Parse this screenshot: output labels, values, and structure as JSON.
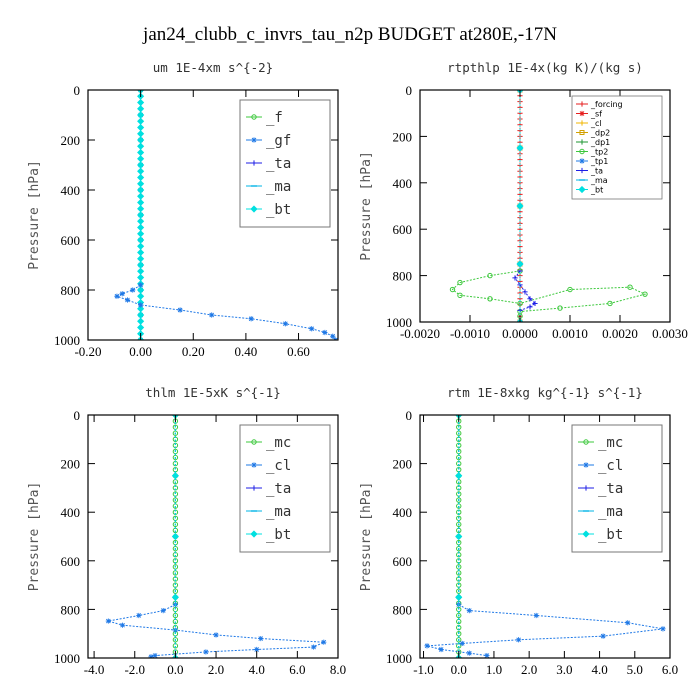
{
  "figure_title": "jan24_clubb_c_invrs_tau_n2p  BUDGET at280E,-17N",
  "chart_data": [
    {
      "type": "line",
      "title": "um   1E-4xm s^{-2}",
      "ylabel": "Pressure [hPa]",
      "ylim": [
        1000,
        0
      ],
      "xlim": [
        -0.2,
        0.75
      ],
      "xticks": [
        "-0.20",
        "0.00",
        "0.20",
        "0.40",
        "0.60"
      ],
      "xtick_values": [
        -0.2,
        0.0,
        0.2,
        0.4,
        0.6
      ],
      "yticks": [
        "0",
        "200",
        "400",
        "600",
        "800",
        "1000"
      ],
      "ytick_values": [
        0,
        200,
        400,
        600,
        800,
        1000
      ],
      "legend_style": "big",
      "legend_position": "top-right",
      "series": [
        {
          "name": "_f",
          "color": "#3cc83c",
          "marker": "circle",
          "x": [
            0,
            0,
            0,
            0,
            0,
            0,
            0,
            0,
            0,
            0,
            0
          ],
          "y": [
            0,
            100,
            200,
            300,
            400,
            500,
            600,
            700,
            800,
            900,
            1000
          ]
        },
        {
          "name": "_gf",
          "color": "#1e78e6",
          "marker": "star",
          "x": [
            0,
            0,
            0,
            0,
            0,
            0,
            0,
            0,
            0,
            0,
            0
          ],
          "y": [
            0,
            100,
            200,
            300,
            400,
            500,
            600,
            700,
            800,
            900,
            1000
          ]
        },
        {
          "name": "_ta",
          "color": "#1e1ee6",
          "marker": "plus",
          "x": [
            0,
            0,
            0,
            0,
            0,
            0,
            0,
            0,
            0,
            0,
            0
          ],
          "y": [
            0,
            100,
            200,
            300,
            400,
            500,
            600,
            700,
            800,
            900,
            1000
          ]
        },
        {
          "name": "_ma",
          "color": "#00b4e6",
          "marker": "dash",
          "x": [
            0,
            0,
            0,
            0,
            0,
            0,
            0,
            0,
            0,
            0,
            0
          ],
          "y": [
            0,
            100,
            200,
            300,
            400,
            500,
            600,
            700,
            800,
            900,
            1000
          ]
        },
        {
          "name": "_bt",
          "color": "#00e0e0",
          "marker": "diamond",
          "x": [
            0,
            0,
            0,
            0,
            0,
            0,
            0,
            0,
            0,
            0,
            0,
            0,
            0,
            0,
            0,
            0,
            0,
            0,
            0,
            0,
            0,
            0,
            0,
            0,
            0,
            0,
            0,
            0,
            0,
            0,
            0,
            0,
            0,
            0,
            0,
            0,
            0,
            0,
            0,
            0,
            0
          ],
          "y": [
            0,
            25,
            50,
            75,
            100,
            125,
            150,
            175,
            200,
            225,
            250,
            275,
            300,
            325,
            350,
            375,
            400,
            425,
            450,
            475,
            500,
            525,
            550,
            575,
            600,
            625,
            650,
            675,
            700,
            725,
            750,
            775,
            800,
            825,
            850,
            875,
            900,
            925,
            950,
            975,
            1000
          ]
        },
        {
          "name": "",
          "color": "#1e78e6",
          "marker": "star",
          "x": [
            0.0,
            -0.03,
            -0.07,
            -0.09,
            -0.05,
            0.0,
            0.15,
            0.27,
            0.42,
            0.55,
            0.65,
            0.7,
            0.73,
            0.74
          ],
          "y": [
            780,
            800,
            815,
            825,
            840,
            860,
            880,
            900,
            915,
            935,
            955,
            970,
            985,
            1000
          ]
        }
      ]
    },
    {
      "type": "line",
      "title": "rtpthlp   1E-4x(kg K)/(kg s)",
      "ylabel": "Pressure [hPa]",
      "ylim": [
        1000,
        0
      ],
      "xlim": [
        -0.002,
        0.003
      ],
      "xticks": [
        "-0.0020",
        "-0.0010",
        "0.0000",
        "0.0010",
        "0.0020",
        "0.0030"
      ],
      "xtick_values": [
        -0.002,
        -0.001,
        0.0,
        0.001,
        0.002,
        0.003
      ],
      "yticks": [
        "0",
        "200",
        "400",
        "600",
        "800",
        "1000"
      ],
      "ytick_values": [
        0,
        200,
        400,
        600,
        800,
        1000
      ],
      "legend_style": "small",
      "legend_position": "top-right",
      "series": [
        {
          "name": "_forcing",
          "color": "#e61e1e",
          "marker": "plus",
          "x": [
            0,
            0,
            0,
            0,
            0,
            0,
            0,
            0,
            0,
            0,
            0,
            0,
            0,
            0,
            0,
            0,
            0,
            0,
            0,
            0,
            0,
            0,
            0,
            0,
            0,
            0,
            0,
            0,
            0,
            0,
            0,
            0,
            0,
            0,
            0,
            0,
            0,
            0,
            0,
            0,
            0
          ],
          "y": [
            0,
            25,
            50,
            75,
            100,
            125,
            150,
            175,
            200,
            225,
            250,
            275,
            300,
            325,
            350,
            375,
            400,
            425,
            450,
            475,
            500,
            525,
            550,
            575,
            600,
            625,
            650,
            675,
            700,
            725,
            750,
            775,
            800,
            825,
            850,
            875,
            900,
            925,
            950,
            975,
            1000
          ]
        },
        {
          "name": "_sf",
          "color": "#e61e1e",
          "marker": "star",
          "x": [
            0,
            0,
            0,
            0,
            0
          ],
          "y": [
            0,
            250,
            500,
            750,
            1000
          ]
        },
        {
          "name": "_cl",
          "color": "#f0b400",
          "marker": "plus",
          "x": [
            0,
            0,
            0,
            0,
            0
          ],
          "y": [
            0,
            250,
            500,
            750,
            1000
          ]
        },
        {
          "name": "_dp2",
          "color": "#d2a000",
          "marker": "square",
          "x": [
            0,
            0,
            0,
            0,
            0
          ],
          "y": [
            0,
            250,
            500,
            750,
            1000
          ]
        },
        {
          "name": "_dp1",
          "color": "#1e9632",
          "marker": "plus",
          "x": [
            0,
            0,
            0,
            0,
            0
          ],
          "y": [
            0,
            250,
            500,
            750,
            1000
          ]
        },
        {
          "name": "_tp2",
          "color": "#3cc83c",
          "marker": "circle",
          "x": [
            0.0,
            -0.0006,
            -0.0012,
            -0.00135,
            -0.0012,
            -0.0006,
            0.0,
            0.001,
            0.0022,
            0.0025,
            0.0018,
            0.0008,
            0.0,
            0.0
          ],
          "y": [
            780,
            800,
            830,
            860,
            885,
            900,
            920,
            860,
            850,
            880,
            920,
            940,
            955,
            975
          ]
        },
        {
          "name": "_tp1",
          "color": "#1e78e6",
          "marker": "star",
          "x": [
            0,
            0,
            0,
            0,
            0
          ],
          "y": [
            0,
            250,
            500,
            750,
            1000
          ]
        },
        {
          "name": "_ta",
          "color": "#1e1ee6",
          "marker": "plus",
          "x": [
            0.0,
            -0.0001,
            0.0,
            0.0001,
            0.0002,
            0.0003,
            0.0002,
            0.0
          ],
          "y": [
            780,
            810,
            840,
            870,
            900,
            920,
            935,
            950
          ]
        },
        {
          "name": "_ma",
          "color": "#00b4e6",
          "marker": "dash",
          "x": [
            0,
            0,
            0,
            0,
            0
          ],
          "y": [
            0,
            250,
            500,
            750,
            1000
          ]
        },
        {
          "name": "_bt",
          "color": "#00e0e0",
          "marker": "diamond",
          "x": [
            0,
            0,
            0,
            0,
            0
          ],
          "y": [
            0,
            250,
            500,
            750,
            1000
          ]
        }
      ]
    },
    {
      "type": "line",
      "title": "thlm   1E-5xK s^{-1}",
      "ylabel": "Pressure [hPa]",
      "ylim": [
        1000,
        0
      ],
      "xlim": [
        -4.3,
        8.0
      ],
      "xticks": [
        "-4.0",
        "-2.0",
        "0.0",
        "2.0",
        "4.0",
        "6.0",
        "8.0"
      ],
      "xtick_values": [
        -4.0,
        -2.0,
        0.0,
        2.0,
        4.0,
        6.0,
        8.0
      ],
      "yticks": [
        "0",
        "200",
        "400",
        "600",
        "800",
        "1000"
      ],
      "ytick_values": [
        0,
        200,
        400,
        600,
        800,
        1000
      ],
      "legend_style": "big",
      "legend_position": "top-right",
      "series": [
        {
          "name": "_mc",
          "color": "#3cc83c",
          "marker": "circle",
          "x": [
            0,
            0,
            0,
            0,
            0,
            0,
            0,
            0,
            0,
            0,
            0,
            0,
            0,
            0,
            0,
            0,
            0,
            0,
            0,
            0,
            0,
            0,
            0,
            0,
            0,
            0,
            0,
            0,
            0,
            0,
            0,
            0,
            0,
            0,
            0,
            0,
            0,
            0,
            0,
            0,
            0
          ],
          "y": [
            0,
            25,
            50,
            75,
            100,
            125,
            150,
            175,
            200,
            225,
            250,
            275,
            300,
            325,
            350,
            375,
            400,
            425,
            450,
            475,
            500,
            525,
            550,
            575,
            600,
            625,
            650,
            675,
            700,
            725,
            750,
            775,
            800,
            825,
            850,
            875,
            900,
            925,
            950,
            975,
            1000
          ]
        },
        {
          "name": "_cl",
          "color": "#1e78e6",
          "marker": "star",
          "x": [
            0.0,
            -0.6,
            -1.8,
            -3.3,
            -2.6,
            0.0,
            2.0,
            4.2,
            7.3,
            6.8,
            4.0,
            1.5,
            -1.0,
            -1.2
          ],
          "y": [
            780,
            805,
            825,
            848,
            865,
            885,
            905,
            920,
            935,
            955,
            965,
            975,
            990,
            995
          ]
        },
        {
          "name": "_ta",
          "color": "#1e1ee6",
          "marker": "plus",
          "x": [
            0,
            0,
            0,
            0,
            0
          ],
          "y": [
            0,
            250,
            500,
            750,
            1000
          ]
        },
        {
          "name": "_ma",
          "color": "#00b4e6",
          "marker": "dash",
          "x": [
            0,
            0,
            0,
            0,
            0
          ],
          "y": [
            0,
            250,
            500,
            750,
            1000
          ]
        },
        {
          "name": "_bt",
          "color": "#00e0e0",
          "marker": "diamond",
          "x": [
            0,
            0,
            0,
            0,
            0
          ],
          "y": [
            0,
            250,
            500,
            750,
            1000
          ]
        }
      ]
    },
    {
      "type": "line",
      "title": "rtm   1E-8xkg kg^{-1} s^{-1}",
      "ylabel": "Pressure [hPa]",
      "ylim": [
        1000,
        0
      ],
      "xlim": [
        -1.1,
        6.0
      ],
      "xticks": [
        "-1.0",
        "0.0",
        "1.0",
        "2.0",
        "3.0",
        "4.0",
        "5.0",
        "6.0"
      ],
      "xtick_values": [
        -1.0,
        0.0,
        1.0,
        2.0,
        3.0,
        4.0,
        5.0,
        6.0
      ],
      "yticks": [
        "0",
        "200",
        "400",
        "600",
        "800",
        "1000"
      ],
      "ytick_values": [
        0,
        200,
        400,
        600,
        800,
        1000
      ],
      "legend_style": "big",
      "legend_position": "top-right",
      "series": [
        {
          "name": "_mc",
          "color": "#3cc83c",
          "marker": "circle",
          "x": [
            0,
            0,
            0,
            0,
            0,
            0,
            0,
            0,
            0,
            0,
            0,
            0,
            0,
            0,
            0,
            0,
            0,
            0,
            0,
            0,
            0,
            0,
            0,
            0,
            0,
            0,
            0,
            0,
            0,
            0,
            0,
            0,
            0,
            0,
            0,
            0,
            0,
            0,
            0,
            0,
            0
          ],
          "y": [
            0,
            25,
            50,
            75,
            100,
            125,
            150,
            175,
            200,
            225,
            250,
            275,
            300,
            325,
            350,
            375,
            400,
            425,
            450,
            475,
            500,
            525,
            550,
            575,
            600,
            625,
            650,
            675,
            700,
            725,
            750,
            775,
            800,
            825,
            850,
            875,
            900,
            925,
            950,
            975,
            1000
          ]
        },
        {
          "name": "_cl",
          "color": "#1e78e6",
          "marker": "star",
          "x": [
            0.0,
            0.3,
            2.2,
            4.8,
            5.8,
            4.1,
            1.7,
            0.1,
            -0.9,
            -0.5,
            0.3,
            0.8
          ],
          "y": [
            780,
            805,
            825,
            855,
            880,
            910,
            925,
            940,
            950,
            965,
            980,
            990
          ]
        },
        {
          "name": "_ta",
          "color": "#1e1ee6",
          "marker": "plus",
          "x": [
            0,
            0,
            0,
            0,
            0
          ],
          "y": [
            0,
            250,
            500,
            750,
            1000
          ]
        },
        {
          "name": "_ma",
          "color": "#00b4e6",
          "marker": "dash",
          "x": [
            0,
            0,
            0,
            0,
            0
          ],
          "y": [
            0,
            250,
            500,
            750,
            1000
          ]
        },
        {
          "name": "_bt",
          "color": "#00e0e0",
          "marker": "diamond",
          "x": [
            0,
            0,
            0,
            0,
            0
          ],
          "y": [
            0,
            250,
            500,
            750,
            1000
          ]
        }
      ]
    }
  ]
}
